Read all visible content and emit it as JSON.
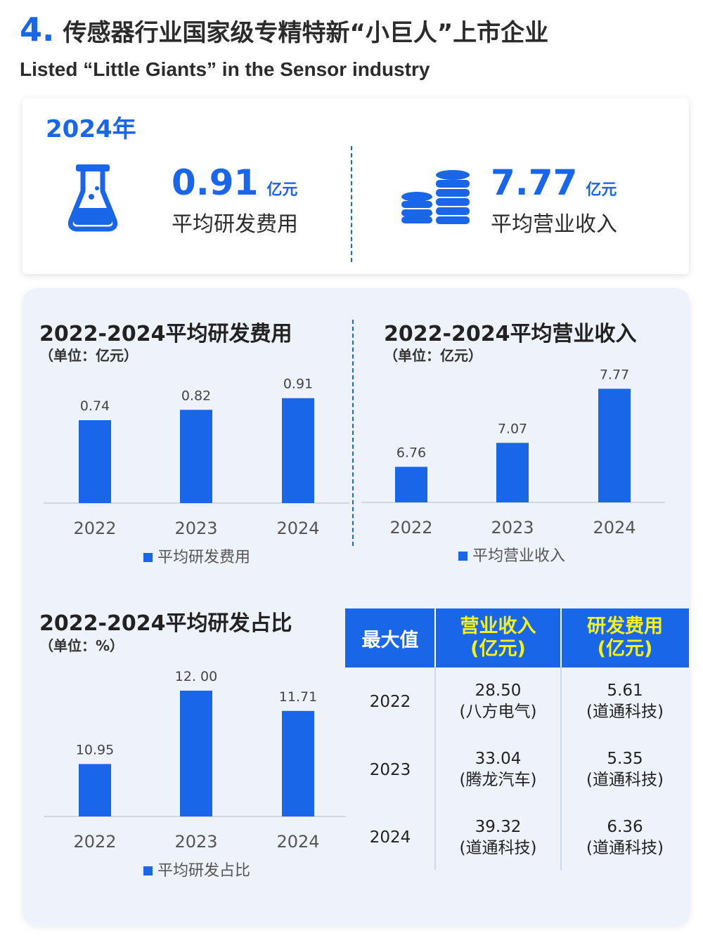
{
  "header": {
    "number": "4.",
    "title": "传感器行业国家级专精特新“小巨人”上市企业",
    "subtitle": "Listed “Little Giants” in the Sensor industry"
  },
  "summary": {
    "year": "2024年",
    "stats": [
      {
        "value": "0.91",
        "unit": "亿元",
        "label": "平均研发费用",
        "icon": "flask-icon"
      },
      {
        "value": "7.77",
        "unit": "亿元",
        "label": "平均营业收入",
        "icon": "coin-stack-icon"
      }
    ]
  },
  "colors": {
    "accent": "#1a66e8",
    "highlight": "#f5f21a",
    "panel": "#eef3fb"
  },
  "chart_data": [
    {
      "type": "bar",
      "title": "2022-2024平均研发费用",
      "unit": "（单位：亿元）",
      "categories": [
        "2022",
        "2023",
        "2024"
      ],
      "series": [
        {
          "name": "平均研发费用",
          "values": [
            0.74,
            0.82,
            0.91
          ]
        }
      ],
      "data_labels": [
        "0.74",
        "0.82",
        "0.91"
      ],
      "legend": "bottom",
      "ylim": [
        0.1,
        0.93
      ]
    },
    {
      "type": "bar",
      "title": "2022-2024平均营业收入",
      "unit": "（单位：亿元）",
      "categories": [
        "2022",
        "2023",
        "2024"
      ],
      "series": [
        {
          "name": "平均营业收入",
          "values": [
            6.76,
            7.07,
            7.77
          ]
        }
      ],
      "data_labels": [
        "6.76",
        "7.07",
        "7.77"
      ],
      "legend": "bottom",
      "ylim": [
        6.3,
        7.8
      ]
    },
    {
      "type": "bar",
      "title": "2022-2024平均研发占比",
      "unit": "（单位：%）",
      "categories": [
        "2022",
        "2023",
        "2024"
      ],
      "series": [
        {
          "name": "平均研发占比",
          "values": [
            10.95,
            12.0,
            11.71
          ]
        }
      ],
      "data_labels": [
        "10.95",
        "12. 00",
        "11.71"
      ],
      "legend": "bottom",
      "ylim": [
        10.2,
        12.05
      ]
    }
  ],
  "table": {
    "headers": [
      "最大值",
      "营业收入\n(亿元)",
      "研发费用\n(亿元)"
    ],
    "rows": [
      {
        "year": "2022",
        "revenue": "28.50",
        "revenue_company": "(八方电气)",
        "rd": "5.61",
        "rd_company": "(道通科技)"
      },
      {
        "year": "2023",
        "revenue": "33.04",
        "revenue_company": "(腾龙汽车)",
        "rd": "5.35",
        "rd_company": "(道通科技)"
      },
      {
        "year": "2024",
        "revenue": "39.32",
        "revenue_company": "(道通科技)",
        "rd": "6.36",
        "rd_company": "(道通科技)"
      }
    ]
  }
}
